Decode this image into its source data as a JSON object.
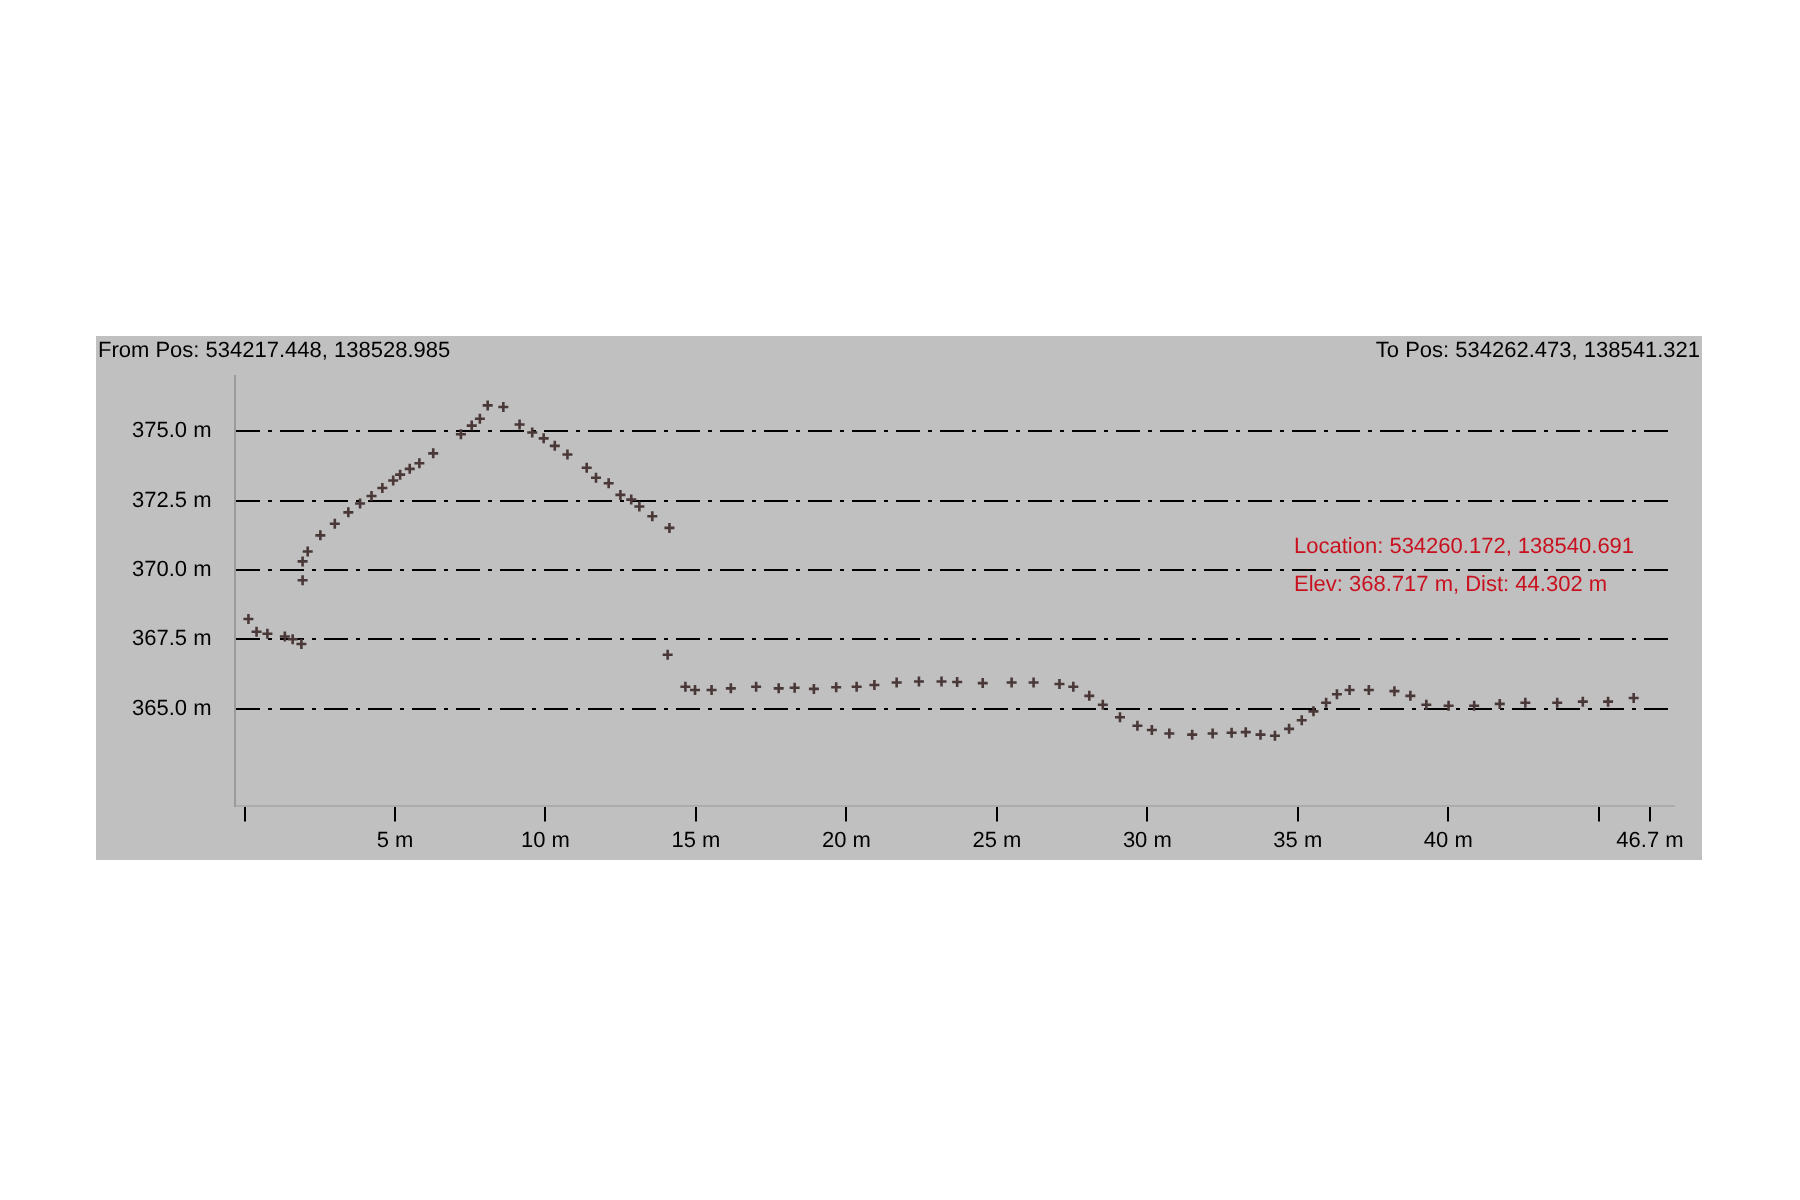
{
  "chart_data": {
    "type": "scatter",
    "marker": "cross",
    "grid": "y",
    "line_style": "dashed",
    "annotations": [
      "From Pos: 534217.448, 138528.985",
      "To Pos: 534262.473, 138541.321",
      "Location: 534260.172, 138540.691",
      "Elev: 368.717 m, Dist: 44.302 m"
    ],
    "xlim": [
      -0.3,
      47.5
    ],
    "xticks": [
      {
        "value": 0,
        "label": null
      },
      {
        "value": 5,
        "label": "5 m"
      },
      {
        "value": 10,
        "label": "10 m"
      },
      {
        "value": 15,
        "label": "15 m"
      },
      {
        "value": 20,
        "label": "20 m"
      },
      {
        "value": 25,
        "label": "25 m"
      },
      {
        "value": 30,
        "label": "30 m"
      },
      {
        "value": 35,
        "label": "35 m"
      },
      {
        "value": 40,
        "label": "40 m"
      },
      {
        "value": 45,
        "label": null
      },
      {
        "value": 46.7,
        "label": "46.7 m"
      }
    ],
    "ylim": [
      361.5,
      377
    ],
    "yticks": [
      {
        "value": 365,
        "label": "365.0 m"
      },
      {
        "value": 367.5,
        "label": "367.5 m"
      },
      {
        "value": 370,
        "label": "370.0 m"
      },
      {
        "value": 372.5,
        "label": "372.5 m"
      },
      {
        "value": 375,
        "label": "375.0 m"
      }
    ],
    "series": [
      {
        "color": "#4a3838",
        "x": [
          0.13,
          0.4,
          0.76,
          1.34,
          1.6,
          1.89,
          1.93,
          1.93,
          2.1,
          2.52,
          3.0,
          3.45,
          3.84,
          4.22,
          4.58,
          4.94,
          5.17,
          5.49,
          5.81,
          6.27,
          7.19,
          7.55,
          7.82,
          8.08,
          8.6,
          9.14,
          9.56,
          9.94,
          10.31,
          10.73,
          11.37,
          11.68,
          12.1,
          12.49,
          12.85,
          13.12,
          13.55,
          14.12,
          14.06,
          14.65,
          14.97,
          15.52,
          16.16,
          17.0,
          17.75,
          18.28,
          18.92,
          19.66,
          20.34,
          20.93,
          21.67,
          22.41,
          23.16,
          23.68,
          24.53,
          25.49,
          26.22,
          27.08,
          27.54,
          28.07,
          28.52,
          29.09,
          29.67,
          30.15,
          30.73,
          31.49,
          32.17,
          32.8,
          33.27,
          33.76,
          34.24,
          34.71,
          35.13,
          35.52,
          35.94,
          36.3,
          36.72,
          37.36,
          38.21,
          38.74,
          39.27,
          40.01,
          40.86,
          41.71,
          42.56,
          43.62,
          44.47,
          45.31,
          46.16
        ],
        "values": [
          368.23,
          367.77,
          367.7,
          367.6,
          367.5,
          367.33,
          369.63,
          370.31,
          370.67,
          371.25,
          371.67,
          372.08,
          372.4,
          372.67,
          372.96,
          373.23,
          373.44,
          373.65,
          373.85,
          374.21,
          374.9,
          375.21,
          375.46,
          375.94,
          375.88,
          375.25,
          374.96,
          374.75,
          374.48,
          374.17,
          373.69,
          373.33,
          373.13,
          372.71,
          372.54,
          372.29,
          371.94,
          371.52,
          366.94,
          365.79,
          365.67,
          365.67,
          365.73,
          365.79,
          365.73,
          365.75,
          365.71,
          365.77,
          365.79,
          365.85,
          365.94,
          365.98,
          365.98,
          365.96,
          365.92,
          365.94,
          365.94,
          365.89,
          365.79,
          365.46,
          365.14,
          364.69,
          364.38,
          364.23,
          364.1,
          364.06,
          364.1,
          364.13,
          364.15,
          364.06,
          364.02,
          364.27,
          364.58,
          364.9,
          365.21,
          365.52,
          365.67,
          365.67,
          365.63,
          365.46,
          365.14,
          365.1,
          365.1,
          365.17,
          365.21,
          365.21,
          365.25,
          365.25,
          365.38
        ]
      }
    ]
  }
}
